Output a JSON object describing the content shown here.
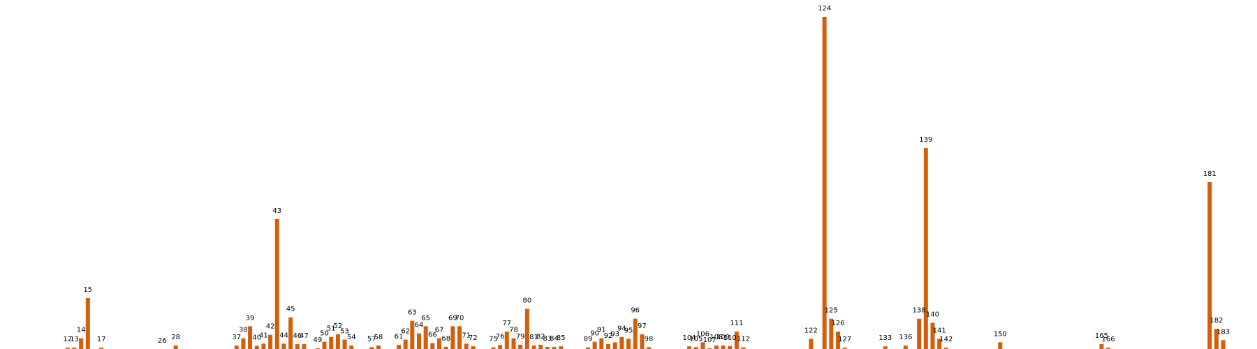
{
  "chart_data": {
    "type": "bar",
    "title": "",
    "xlabel": "",
    "ylabel": "",
    "grid": false,
    "axes_visible": false,
    "legend": "none",
    "bar_color": "#d35f0b",
    "x_domain": [
      2,
      188
    ],
    "ylim": [
      0,
      124
    ],
    "categories": [
      "12",
      "13",
      "14",
      "15",
      "17",
      "26",
      "28",
      "37",
      "38",
      "39",
      "40",
      "41",
      "42",
      "43",
      "44",
      "45",
      "46",
      "47",
      "49",
      "50",
      "51",
      "52",
      "53",
      "54",
      "57",
      "58",
      "61",
      "62",
      "63",
      "64",
      "65",
      "66",
      "67",
      "68",
      "69",
      "70",
      "71",
      "72",
      "75",
      "76",
      "77",
      "78",
      "79",
      "80",
      "81",
      "82",
      "83",
      "84",
      "85",
      "89",
      "90",
      "91",
      "92",
      "93",
      "94",
      "95",
      "96",
      "97",
      "98",
      "104",
      "105",
      "106",
      "107",
      "108",
      "109",
      "110",
      "111",
      "112",
      "122",
      "124",
      "125",
      "126",
      "127",
      "133",
      "136",
      "138",
      "139",
      "140",
      "141",
      "142",
      "150",
      "165",
      "166",
      "181",
      "182",
      "183"
    ],
    "x": [
      12,
      13,
      14,
      15,
      17,
      26,
      28,
      37,
      38,
      39,
      40,
      41,
      42,
      43,
      44,
      45,
      46,
      47,
      49,
      50,
      51,
      52,
      53,
      54,
      57,
      58,
      61,
      62,
      63,
      64,
      65,
      66,
      67,
      68,
      69,
      70,
      71,
      72,
      75,
      76,
      77,
      78,
      79,
      80,
      81,
      82,
      83,
      84,
      85,
      89,
      90,
      91,
      92,
      93,
      94,
      95,
      96,
      97,
      98,
      104,
      105,
      106,
      107,
      108,
      109,
      110,
      111,
      112,
      122,
      124,
      125,
      126,
      127,
      133,
      136,
      138,
      139,
      140,
      141,
      142,
      150,
      165,
      166,
      181,
      182,
      183
    ],
    "values": [
      0.5,
      0.5,
      4,
      19,
      0.5,
      0,
      1.3,
      1.3,
      4,
      8.5,
      1.2,
      2,
      5.3,
      48.5,
      2,
      11.8,
      1.8,
      1.8,
      0.3,
      2.7,
      4.5,
      5.5,
      3.5,
      1.3,
      0.7,
      1.3,
      1.5,
      3.5,
      10.5,
      5.8,
      8.5,
      2.2,
      4,
      0.8,
      8.5,
      8.5,
      2,
      1,
      0.6,
      1.5,
      6.5,
      4,
      1.6,
      15,
      1.3,
      1.6,
      0.8,
      0.8,
      1,
      0.6,
      2.7,
      4,
      1.8,
      2.5,
      4.5,
      3.8,
      11.3,
      5.5,
      0.7,
      1,
      0.7,
      2.5,
      0.3,
      1.3,
      1.3,
      1.1,
      6.5,
      0.6,
      3.8,
      124,
      11.3,
      6.5,
      0.5,
      1,
      1.3,
      11.3,
      75,
      9.8,
      3.8,
      0.5,
      2.5,
      1.8,
      0.5,
      62.3,
      7.5,
      3.3
    ]
  }
}
